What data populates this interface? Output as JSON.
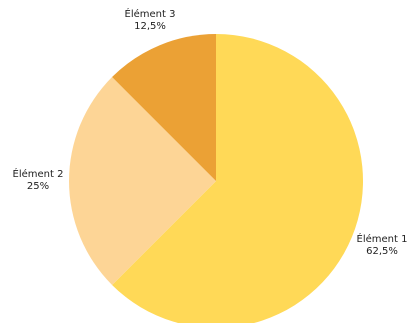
{
  "chart_data": {
    "type": "pie",
    "categories": [
      "Élément 1",
      "Élément 2",
      "Élément 3"
    ],
    "values": [
      62.5,
      25,
      12.5
    ],
    "value_labels": [
      "62,5%",
      "25%",
      "12,5%"
    ],
    "colors": [
      "#FFD957",
      "#FDD596",
      "#EBA135"
    ],
    "title": "",
    "legend": "none",
    "start_angle_deg": 0,
    "direction": "clockwise"
  }
}
